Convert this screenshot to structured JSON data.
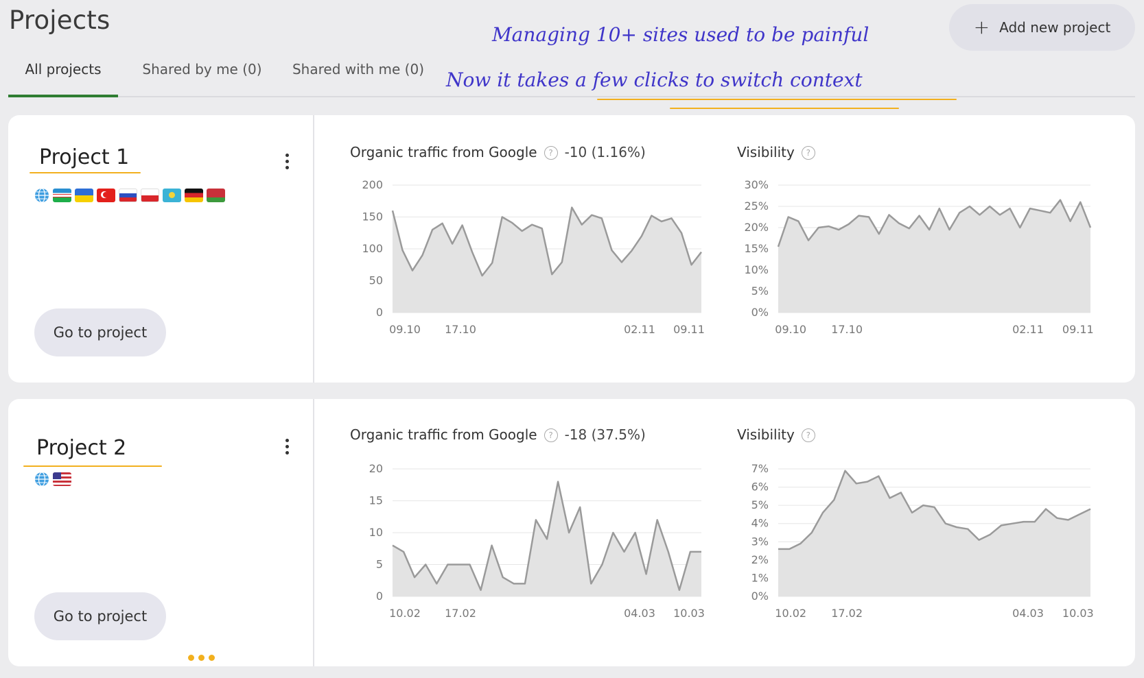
{
  "header": {
    "title": "Projects",
    "add_button_label": "Add new project"
  },
  "tabs": [
    {
      "label": "All projects",
      "active": true
    },
    {
      "label": "Shared by me (0)",
      "active": false
    },
    {
      "label": "Shared with me (0)",
      "active": false
    }
  ],
  "annotation": {
    "line1": "Managing 10+ sites used to be painful",
    "line2": "Now it takes a few clicks to switch context",
    "color": "#3f35c9",
    "highlight_color": "#f2b01e"
  },
  "projects": [
    {
      "name": "Project 1",
      "flags": [
        "globe-icon",
        "uzbekistan-flag-icon",
        "ukraine-flag-icon",
        "turkey-flag-icon",
        "russia-flag-icon",
        "poland-flag-icon",
        "kazakhstan-flag-icon",
        "germany-flag-icon",
        "belarus-flag-icon"
      ],
      "go_label": "Go to project",
      "traffic_title": "Organic traffic from Google",
      "traffic_delta": "-10 (1.16%)",
      "visibility_title": "Visibility"
    },
    {
      "name": "Project 2",
      "flags": [
        "globe-icon",
        "usa-flag-icon"
      ],
      "go_label": "Go to project",
      "traffic_title": "Organic traffic from Google",
      "traffic_delta": "-18 (37.5%)",
      "visibility_title": "Visibility"
    }
  ],
  "chart_data": [
    {
      "type": "area",
      "title": "Organic traffic from Google",
      "project": "Project 1",
      "x_ticks": [
        "09.10",
        "17.10",
        "02.11",
        "09.11"
      ],
      "y_ticks": [
        "200",
        "150",
        "100",
        "50",
        "0"
      ],
      "ylim": [
        0,
        200
      ],
      "values": [
        160,
        98,
        66,
        90,
        130,
        140,
        108,
        137,
        95,
        58,
        78,
        150,
        141,
        128,
        138,
        132,
        60,
        79,
        165,
        138,
        153,
        148,
        98,
        79,
        97,
        120,
        152,
        143,
        148,
        125,
        75,
        95
      ],
      "grid": true
    },
    {
      "type": "area",
      "title": "Visibility",
      "project": "Project 1",
      "x_ticks": [
        "09.10",
        "17.10",
        "02.11",
        "09.11"
      ],
      "y_ticks": [
        "30%",
        "25%",
        "20%",
        "15%",
        "10%",
        "5%",
        "0%"
      ],
      "ylim": [
        0,
        30
      ],
      "values": [
        15.5,
        22.5,
        21.5,
        17,
        20,
        20.3,
        19.5,
        20.8,
        22.8,
        22.5,
        18.5,
        23,
        21,
        19.8,
        22.8,
        19.5,
        24.5,
        19.5,
        23.5,
        25,
        23,
        25,
        23,
        24.5,
        20,
        24.5,
        24,
        23.5,
        26.5,
        21.5,
        26,
        20
      ],
      "grid": true
    },
    {
      "type": "area",
      "title": "Organic traffic from Google",
      "project": "Project 2",
      "x_ticks": [
        "10.02",
        "17.02",
        "04.03",
        "10.03"
      ],
      "y_ticks": [
        "20",
        "15",
        "10",
        "5",
        "0"
      ],
      "ylim": [
        0,
        20
      ],
      "values": [
        8,
        7,
        3,
        5,
        2,
        5,
        5,
        5,
        1,
        8,
        3,
        2,
        2,
        12,
        9,
        18,
        10,
        14,
        2,
        5,
        10,
        7,
        10,
        3.5,
        12,
        7,
        1,
        7,
        7
      ],
      "grid": true
    },
    {
      "type": "area",
      "title": "Visibility",
      "project": "Project 2",
      "x_ticks": [
        "10.02",
        "17.02",
        "04.03",
        "10.03"
      ],
      "y_ticks": [
        "7%",
        "6%",
        "5%",
        "4%",
        "3%",
        "2%",
        "1%",
        "0%"
      ],
      "ylim": [
        0,
        7
      ],
      "values": [
        2.6,
        2.6,
        2.9,
        3.5,
        4.6,
        5.3,
        6.9,
        6.2,
        6.3,
        6.6,
        5.4,
        5.7,
        4.6,
        5,
        4.9,
        4,
        3.8,
        3.7,
        3.1,
        3.4,
        3.9,
        4,
        4.1,
        4.1,
        4.8,
        4.3,
        4.2,
        4.5,
        4.8
      ],
      "grid": true
    }
  ],
  "more_indicator": "..."
}
